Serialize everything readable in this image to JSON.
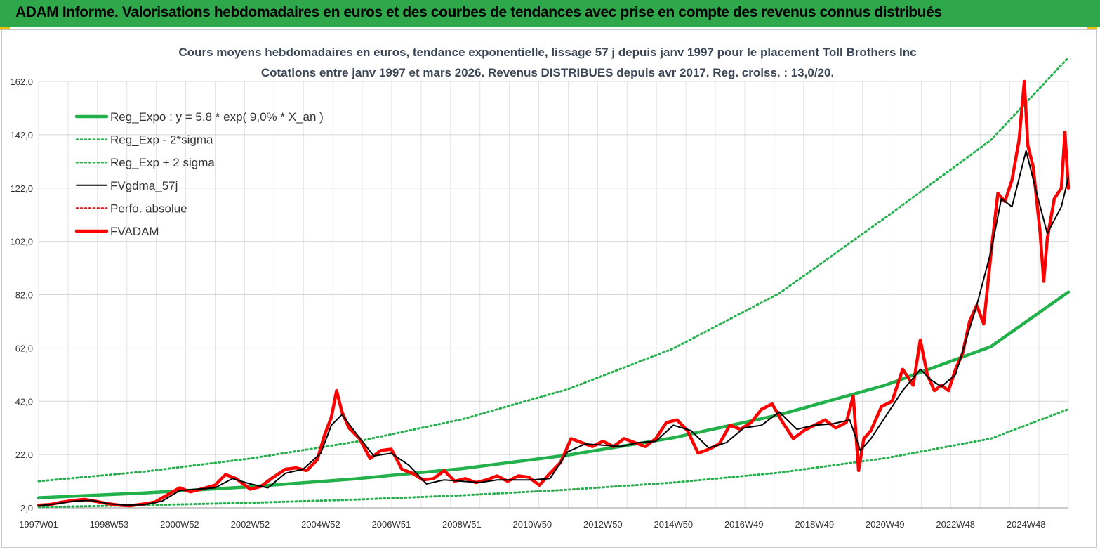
{
  "banner": {
    "title": "ADAM Informe. Valorisations hebdomadaires en euros et des courbes de tendances avec prise en compte des revenus connus distribués",
    "color": "#2ea84a",
    "accent": "#f0c000"
  },
  "chart_data": {
    "type": "line",
    "title": "Cours moyens hebdomadaires en euros, tendance exponentielle, lissage 57 j depuis janv 1997 pour le placement Toll Brothers Inc",
    "subtitle": "Cotations entre janv 1997 et mars 2026. Revenus DISTRIBUES depuis avr 2017. Reg. croiss. : 13,0/20.",
    "xlabel": "",
    "ylabel": "",
    "xlim": [
      1997.0,
      2026.2
    ],
    "ylim": [
      2,
      162
    ],
    "y_ticks": [
      "2,0",
      "22,0",
      "42,0",
      "62,0",
      "82,0",
      "102,0",
      "122,0",
      "142,0",
      "162,0"
    ],
    "x_ticks": [
      {
        "label": "1997W01",
        "x": 1997.0
      },
      {
        "label": "1998W53",
        "x": 1999.0
      },
      {
        "label": "2000W52",
        "x": 2001.0
      },
      {
        "label": "2002W52",
        "x": 2003.0
      },
      {
        "label": "2004W52",
        "x": 2005.0
      },
      {
        "label": "2006W51",
        "x": 2007.0
      },
      {
        "label": "2008W51",
        "x": 2009.0
      },
      {
        "label": "2010W50",
        "x": 2011.0
      },
      {
        "label": "2012W50",
        "x": 2013.0
      },
      {
        "label": "2014W50",
        "x": 2015.0
      },
      {
        "label": "2016W49",
        "x": 2017.0
      },
      {
        "label": "2018W49",
        "x": 2019.0
      },
      {
        "label": "2020W49",
        "x": 2021.0
      },
      {
        "label": "2022W48",
        "x": 2023.0
      },
      {
        "label": "2024W48",
        "x": 2025.0
      }
    ],
    "grid": true,
    "legend_position": "top-left",
    "series": [
      {
        "name": "Reg_Expo : y = 5,8 * exp( 9,0% *  X_an )",
        "color": "#22b04b",
        "style": "thick",
        "x": [
          1997,
          2000,
          2003,
          2006,
          2009,
          2012,
          2015,
          2018,
          2021,
          2024,
          2026.2
        ],
        "values": [
          5.8,
          7.6,
          9.9,
          12.9,
          16.7,
          21.8,
          28.3,
          36.9,
          48.0,
          62.5,
          83.0
        ]
      },
      {
        "name": "Reg_Exp - 2*sigma",
        "color": "#22b04b",
        "style": "dotted",
        "x": [
          1997,
          2000,
          2003,
          2006,
          2009,
          2012,
          2015,
          2018,
          2021,
          2024,
          2026.2
        ],
        "values": [
          2.3,
          3.0,
          3.9,
          5.1,
          6.7,
          8.8,
          11.5,
          15.2,
          20.6,
          28.0,
          39.0
        ]
      },
      {
        "name": "Reg_Exp + 2 sigma",
        "color": "#22b04b",
        "style": "dotted",
        "x": [
          1997,
          2000,
          2003,
          2006,
          2009,
          2012,
          2015,
          2018,
          2021,
          2024,
          2026.2
        ],
        "values": [
          12.0,
          15.6,
          20.5,
          26.8,
          35.2,
          46.5,
          61.8,
          82.5,
          110.8,
          140.0,
          171.0
        ]
      },
      {
        "name": "FVgdma_57j",
        "color": "#000000",
        "style": "solid",
        "x": [
          1997.0,
          1997.5,
          1998.0,
          1998.5,
          1999.0,
          1999.5,
          2000.0,
          2000.5,
          2001.0,
          2001.5,
          2002.0,
          2002.5,
          2003.0,
          2003.5,
          2004.0,
          2004.5,
          2005.0,
          2005.3,
          2005.6,
          2006.0,
          2006.5,
          2007.0,
          2007.5,
          2008.0,
          2008.5,
          2009.0,
          2009.5,
          2010.0,
          2010.5,
          2011.0,
          2011.5,
          2012.0,
          2012.5,
          2013.0,
          2013.5,
          2014.0,
          2014.5,
          2015.0,
          2015.5,
          2016.0,
          2016.5,
          2017.0,
          2017.5,
          2018.0,
          2018.5,
          2019.0,
          2019.5,
          2020.0,
          2020.3,
          2020.6,
          2021.0,
          2021.5,
          2022.0,
          2022.3,
          2022.6,
          2023.0,
          2023.3,
          2023.6,
          2024.0,
          2024.3,
          2024.6,
          2025.0,
          2025.3,
          2025.6,
          2026.0,
          2026.2
        ],
        "values": [
          2.8,
          3.5,
          4.5,
          4.8,
          3.5,
          3.0,
          3.2,
          4.5,
          8.5,
          9.0,
          9.5,
          13.0,
          11.0,
          9.5,
          15.0,
          16.5,
          22.5,
          33.0,
          37.0,
          30.0,
          21.5,
          22.5,
          18.0,
          11.0,
          12.5,
          12.0,
          11.5,
          12.5,
          12.5,
          12.5,
          13.0,
          23.0,
          26.0,
          25.5,
          25.0,
          26.5,
          27.0,
          33.0,
          31.0,
          24.5,
          26.5,
          32.0,
          33.0,
          38.0,
          31.5,
          33.0,
          33.5,
          35.0,
          23.5,
          28.0,
          36.0,
          46.0,
          54.0,
          50.0,
          47.5,
          52.0,
          65.0,
          78.0,
          98.0,
          118.0,
          115.0,
          136.0,
          120.0,
          105.0,
          115.0,
          126.0
        ]
      },
      {
        "name": "Perfo. absolue",
        "color": "#e02020",
        "style": "dotted",
        "x": [],
        "values": []
      },
      {
        "name": "FVADAM",
        "color": "#ff0000",
        "style": "thick",
        "x": [
          1997.0,
          1997.3,
          1997.6,
          1998.0,
          1998.3,
          1998.6,
          1999.0,
          1999.3,
          1999.6,
          2000.0,
          2000.3,
          2000.6,
          2001.0,
          2001.3,
          2001.6,
          2002.0,
          2002.3,
          2002.6,
          2003.0,
          2003.3,
          2003.6,
          2004.0,
          2004.3,
          2004.6,
          2004.9,
          2005.1,
          2005.3,
          2005.45,
          2005.6,
          2005.8,
          2006.1,
          2006.4,
          2006.7,
          2007.0,
          2007.3,
          2007.6,
          2007.9,
          2008.2,
          2008.5,
          2008.8,
          2009.1,
          2009.4,
          2009.7,
          2010.0,
          2010.3,
          2010.6,
          2010.9,
          2011.2,
          2011.5,
          2011.8,
          2012.1,
          2012.4,
          2012.7,
          2013.0,
          2013.3,
          2013.6,
          2013.9,
          2014.2,
          2014.5,
          2014.8,
          2015.1,
          2015.4,
          2015.7,
          2016.0,
          2016.3,
          2016.6,
          2016.9,
          2017.2,
          2017.5,
          2017.8,
          2018.1,
          2018.4,
          2018.7,
          2019.0,
          2019.3,
          2019.6,
          2019.9,
          2020.1,
          2020.25,
          2020.4,
          2020.6,
          2020.9,
          2021.2,
          2021.5,
          2021.8,
          2022.0,
          2022.2,
          2022.4,
          2022.6,
          2022.8,
          2023.0,
          2023.2,
          2023.4,
          2023.6,
          2023.8,
          2024.0,
          2024.2,
          2024.4,
          2024.6,
          2024.8,
          2024.95,
          2025.05,
          2025.2,
          2025.4,
          2025.5,
          2025.6,
          2025.8,
          2026.0,
          2026.1,
          2026.2
        ],
        "values": [
          3.0,
          3.2,
          4.0,
          4.8,
          5.2,
          4.5,
          3.5,
          3.0,
          2.8,
          3.5,
          4.2,
          6.5,
          9.5,
          8.0,
          9.0,
          10.5,
          14.5,
          13.0,
          9.0,
          10.0,
          13.0,
          16.5,
          17.0,
          16.0,
          20.0,
          29.0,
          36.0,
          46.0,
          38.0,
          32.0,
          28.0,
          20.5,
          23.5,
          24.0,
          16.5,
          15.0,
          12.5,
          13.0,
          16.0,
          12.0,
          13.0,
          11.5,
          12.5,
          14.0,
          12.0,
          14.0,
          13.5,
          10.5,
          15.0,
          19.0,
          28.0,
          26.5,
          25.0,
          27.0,
          25.0,
          28.0,
          26.5,
          25.0,
          28.0,
          34.0,
          35.0,
          31.0,
          22.5,
          24.0,
          26.0,
          33.0,
          31.5,
          34.0,
          39.0,
          41.0,
          34.0,
          28.0,
          31.0,
          33.0,
          35.0,
          32.0,
          34.0,
          44.0,
          16.0,
          28.0,
          31.0,
          40.0,
          42.0,
          54.0,
          48.0,
          65.0,
          52.0,
          46.0,
          48.0,
          46.0,
          54.0,
          60.0,
          72.0,
          78.0,
          71.0,
          97.0,
          120.0,
          117.0,
          125.0,
          140.0,
          162.0,
          138.0,
          130.0,
          105.0,
          87.0,
          103.0,
          118.0,
          122.0,
          143.0,
          122.0
        ]
      }
    ]
  }
}
